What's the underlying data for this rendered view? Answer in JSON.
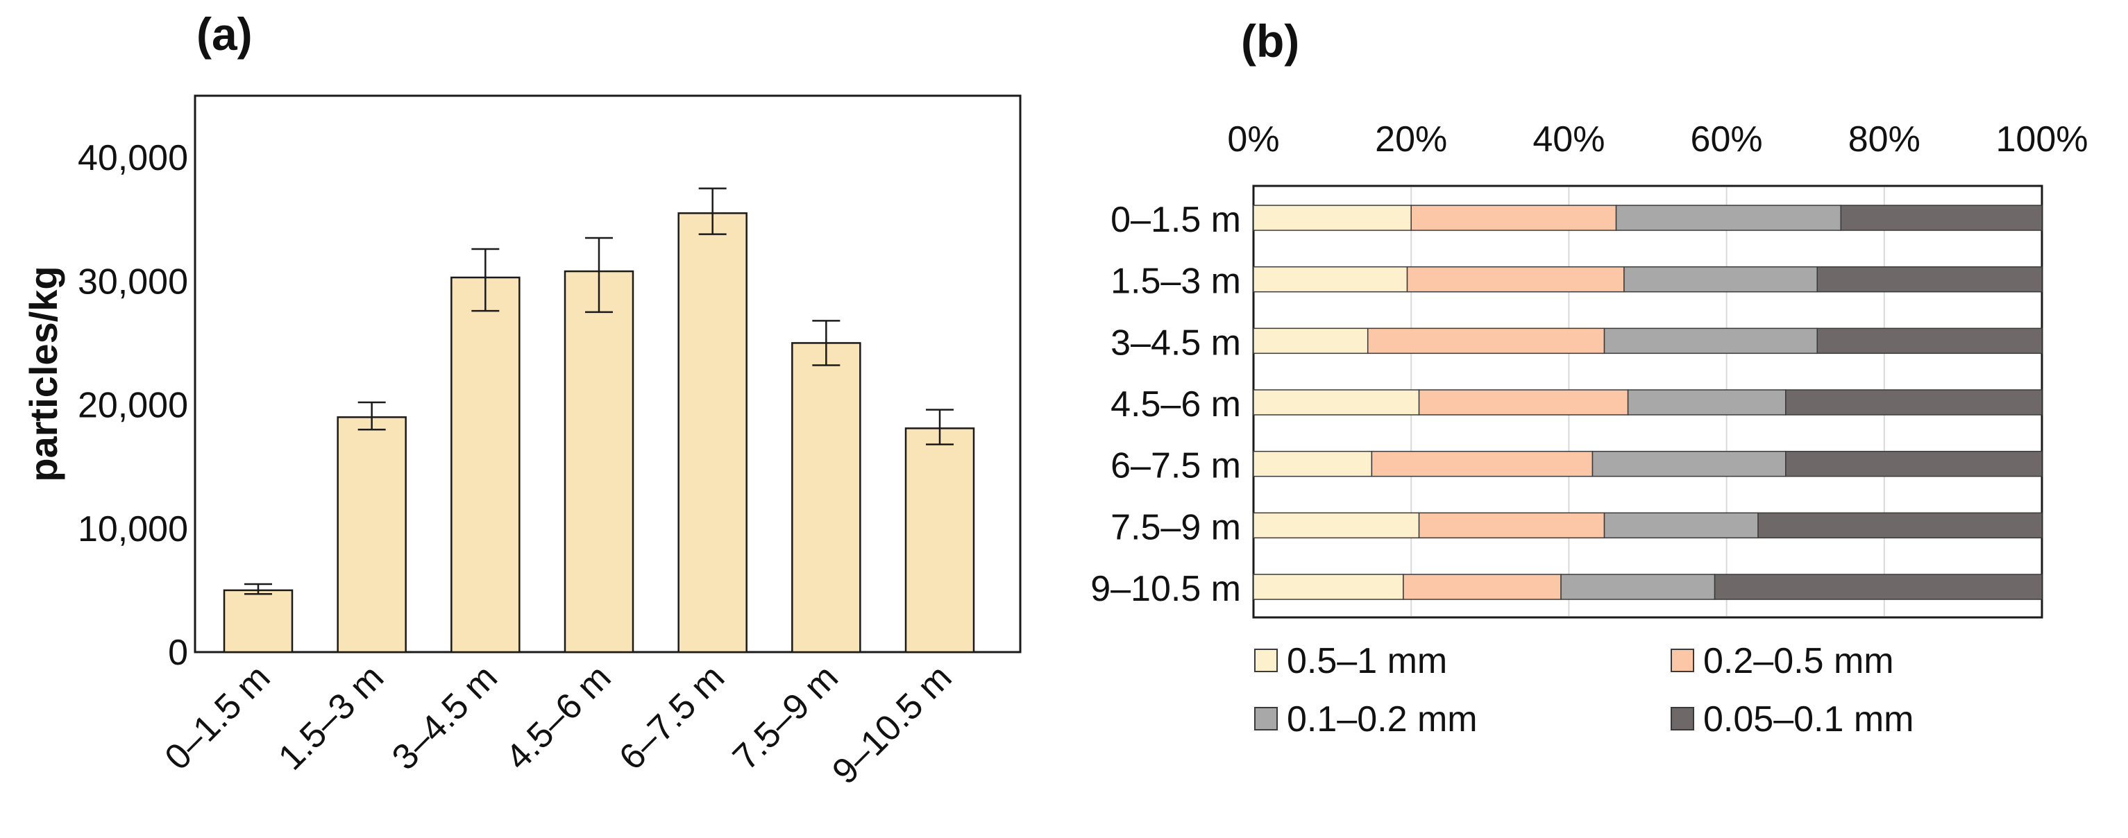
{
  "chart_data": [
    {
      "panel": "(a)",
      "type": "bar",
      "ylabel": "particles/kg",
      "xlabel": "",
      "ylim": [
        0,
        45000
      ],
      "yticks": [
        0,
        10000,
        20000,
        30000,
        40000
      ],
      "ytick_labels": [
        "0",
        "10,000",
        "20,000",
        "30,000",
        "40,000"
      ],
      "categories": [
        "0–1.5 m",
        "1.5–3 m",
        "3–4.5 m",
        "4.5–6 m",
        "6–7.5 m",
        "7.5–9 m",
        "9–10.5 m"
      ],
      "values": [
        5000,
        19000,
        30300,
        30800,
        35500,
        25000,
        18100
      ],
      "error_low": [
        4700,
        18000,
        27600,
        27500,
        33800,
        23200,
        16800
      ],
      "error_high": [
        5500,
        20200,
        32600,
        33500,
        37500,
        26800,
        19600
      ],
      "colors": {
        "bar": "#f9e4b7",
        "edge": "#1a1a1a",
        "error": "#1a1a1a"
      }
    },
    {
      "panel": "(b)",
      "type": "bar",
      "orientation": "horizontal-stacked-100",
      "xlim": [
        0,
        100
      ],
      "xticks": [
        0,
        20,
        40,
        60,
        80,
        100
      ],
      "xtick_labels": [
        "0%",
        "20%",
        "40%",
        "60%",
        "80%",
        "100%"
      ],
      "categories": [
        "0–1.5 m",
        "1.5–3 m",
        "3–4.5 m",
        "4.5–6 m",
        "6–7.5 m",
        "7.5–9 m",
        "9–10.5 m"
      ],
      "series": [
        {
          "name": "0.5–1 mm",
          "color": "#fdf0cc",
          "values": [
            20,
            19.5,
            14.5,
            21,
            15,
            21,
            19
          ]
        },
        {
          "name": "0.2–0.5 mm",
          "color": "#fbc7a6",
          "values": [
            26,
            27.5,
            30,
            26.5,
            28,
            23.5,
            20
          ]
        },
        {
          "name": "0.1–0.2 mm",
          "color": "#a8a8a8",
          "values": [
            28.5,
            24.5,
            27,
            20,
            24.5,
            19.5,
            19.5
          ]
        },
        {
          "name": "0.05–0.1 mm",
          "color": "#6e6968",
          "values": [
            25.5,
            28.5,
            28.5,
            32.5,
            32.5,
            36,
            41.5
          ]
        }
      ],
      "legend_position": "bottom"
    }
  ]
}
